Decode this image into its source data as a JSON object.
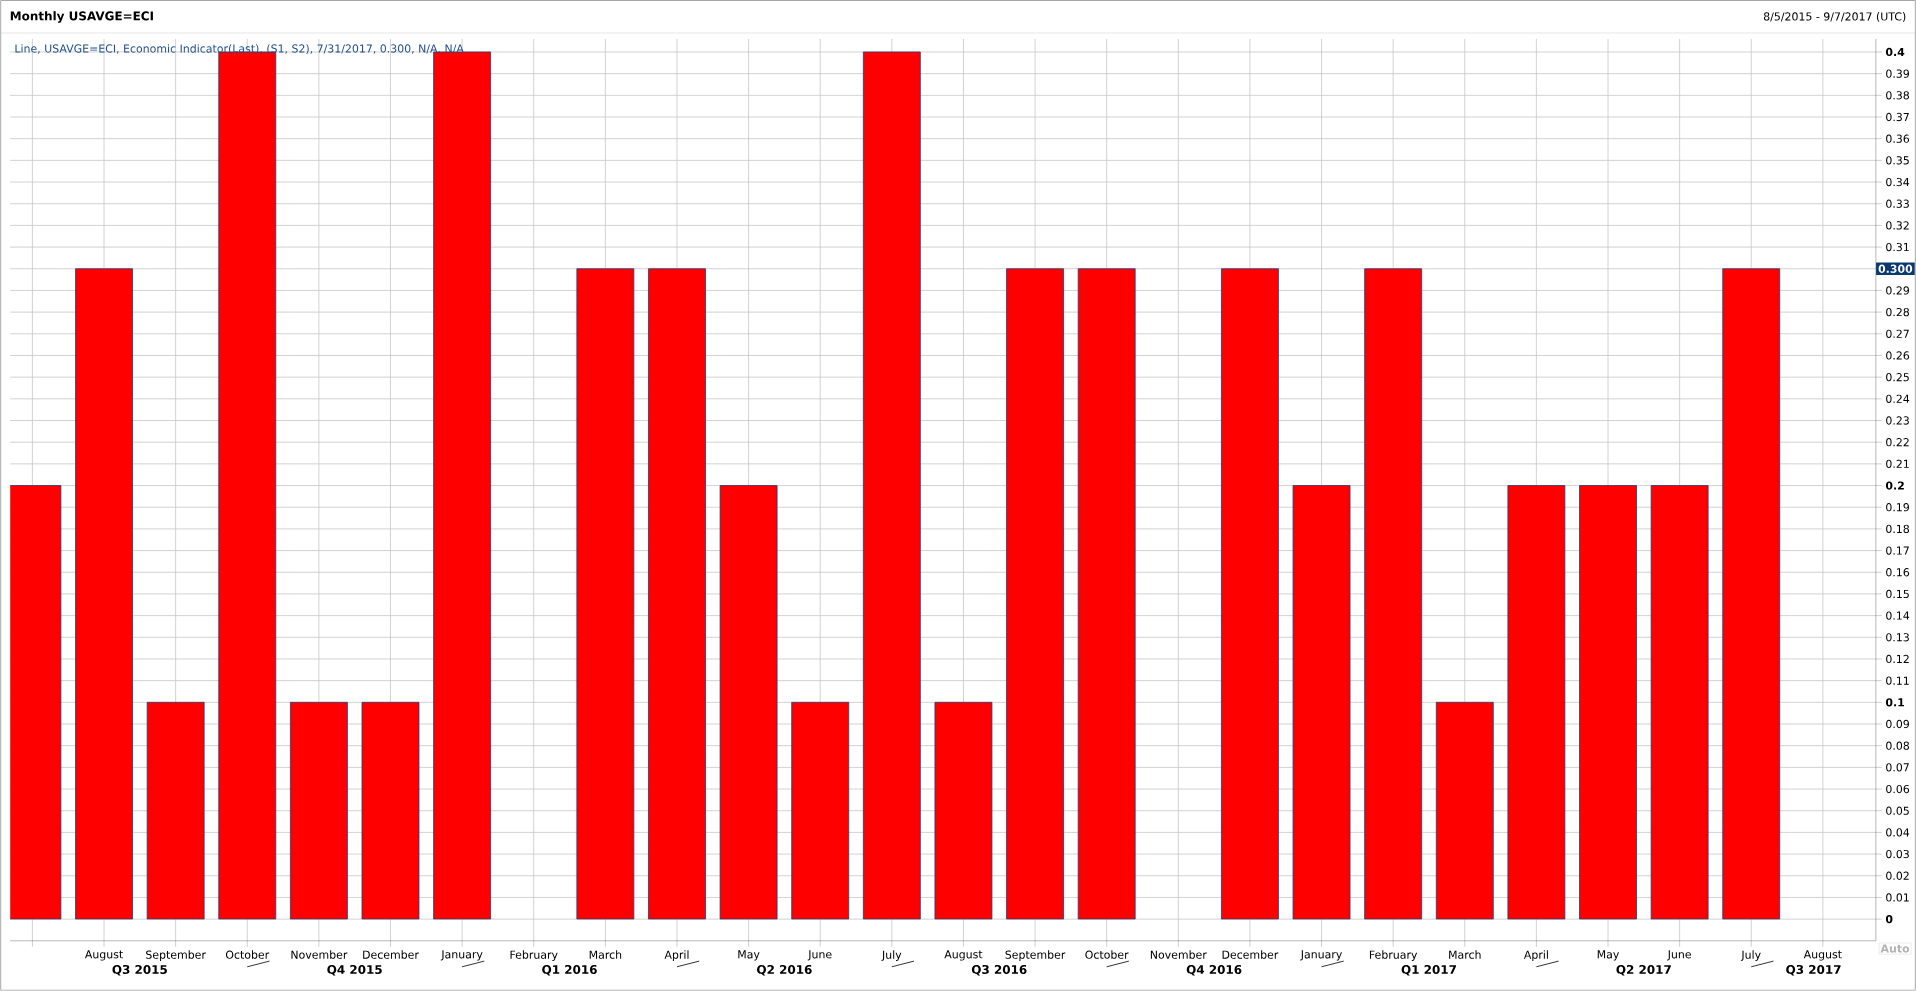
{
  "chart_data": {
    "type": "bar",
    "title": "Monthly USAVGE=ECI",
    "subtitle": "8/5/2015 - 9/7/2017 (UTC)",
    "categories": [
      null,
      "August",
      "September",
      "October",
      "November",
      "December",
      "January",
      "February",
      "March",
      "April",
      "May",
      "June",
      "July",
      "August",
      "September",
      "October",
      "November",
      "December",
      "January",
      "February",
      "March",
      "April",
      "May",
      "June",
      "July",
      "August"
    ],
    "values": [
      0.2,
      0.3,
      0.1,
      0.4,
      0.1,
      0.1,
      0.4,
      null,
      0.3,
      0.3,
      0.2,
      0.1,
      0.4,
      0.1,
      0.3,
      0.3,
      null,
      0.3,
      0.2,
      0.3,
      0.1,
      0.2,
      0.2,
      0.2,
      0.3,
      null
    ],
    "color": "#ff0000",
    "ylim": [
      -0.01,
      0.406
    ],
    "yticks": [
      0,
      0.01,
      0.02,
      0.03,
      0.04,
      0.05,
      0.06,
      0.07,
      0.08,
      0.09,
      0.1,
      0.11,
      0.12,
      0.13,
      0.14,
      0.15,
      0.16,
      0.17,
      0.18,
      0.19,
      0.2,
      0.21,
      0.22,
      0.23,
      0.24,
      0.25,
      0.26,
      0.27,
      0.28,
      0.29,
      {
        "value": 0.3,
        "label": null
      },
      0.31,
      0.32,
      0.33,
      0.34,
      0.35,
      0.36,
      0.37,
      0.38,
      0.39,
      0.4
    ],
    "grid": true,
    "annotations": [
      "Line, USAVGE=ECI, Economic Indicator(Last), (S1, S2), 7/31/2017, 0.300, N/A, N/A",
      {
        "text": "0.300",
        "y": 0.3
      },
      "Auto",
      "Q3 2015",
      "Q4 2015",
      "Q1 2016",
      "Q2 2016",
      "Q3 2016",
      "Q4 2016",
      "Q1 2017",
      "Q2 2017",
      "Q3 2017"
    ]
  }
}
